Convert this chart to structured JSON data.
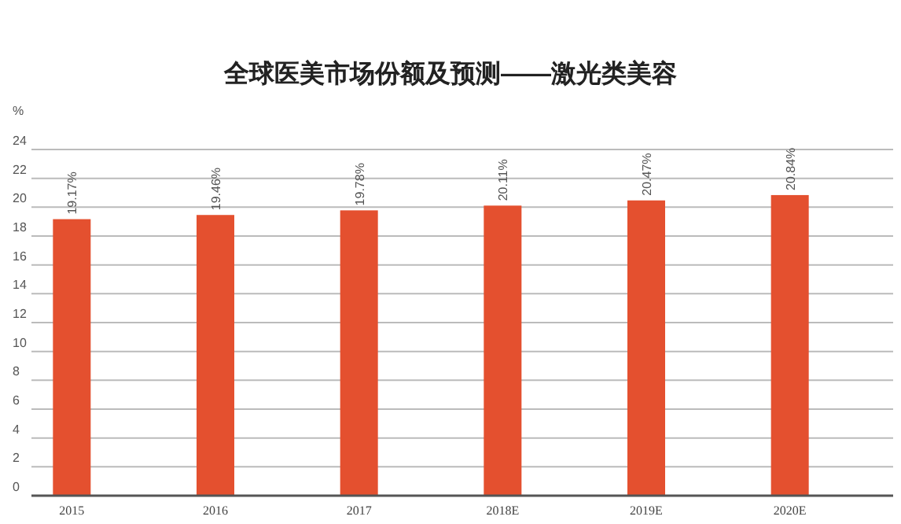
{
  "chart_data": {
    "type": "bar",
    "title": "全球医美市场份额及预测——激光类美容",
    "ylabel": "%",
    "categories": [
      "2015",
      "2016",
      "2017",
      "2018E",
      "2019E",
      "2020E"
    ],
    "values": [
      19.17,
      19.46,
      19.78,
      20.11,
      20.47,
      20.84
    ],
    "value_labels": [
      "19.17%",
      "19.46%",
      "19.78%",
      "20.11%",
      "20.47%",
      "20.84%"
    ],
    "color": "#e4502f",
    "ylim": [
      0,
      24
    ],
    "yticks": [
      0,
      2,
      4,
      6,
      8,
      10,
      12,
      14,
      16,
      18,
      20,
      22,
      24
    ],
    "grid": "y"
  }
}
